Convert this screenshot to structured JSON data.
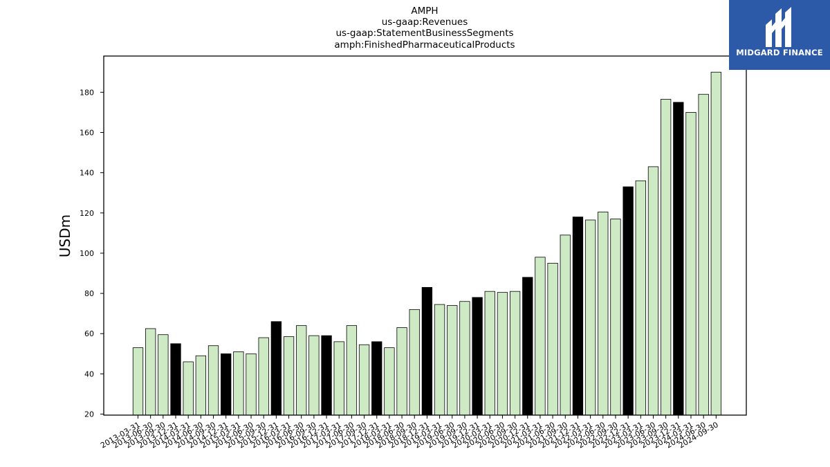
{
  "brand": {
    "name": "MIDGARD FINANCE",
    "bg_color": "#2d5aa8"
  },
  "chart_data": {
    "type": "bar",
    "title_lines": [
      "AMPH",
      "us-gaap:Revenues",
      "us-gaap:StatementBusinessSegments",
      "amph:FinishedPharmaceuticalProducts"
    ],
    "ylabel": "USDm",
    "xlabel": "",
    "ylim": [
      19.5,
      198
    ],
    "yticks": [
      20,
      40,
      60,
      80,
      100,
      120,
      140,
      160,
      180
    ],
    "grid": false,
    "colors": {
      "regular": "#cdeac5",
      "highlight": "#000000",
      "edge": "#000000"
    },
    "categories": [
      "2013-03-31",
      "2013-06-30",
      "2013-09-30",
      "2013-12-31",
      "2014-03-31",
      "2014-06-30",
      "2014-09-30",
      "2014-12-31",
      "2015-03-31",
      "2015-06-30",
      "2015-09-30",
      "2015-12-31",
      "2016-03-31",
      "2016-06-30",
      "2016-09-30",
      "2016-12-31",
      "2017-03-31",
      "2017-06-30",
      "2017-09-30",
      "2017-12-31",
      "2018-03-31",
      "2018-06-30",
      "2018-09-30",
      "2018-12-31",
      "2019-03-31",
      "2019-06-30",
      "2019-09-30",
      "2019-12-31",
      "2020-03-31",
      "2020-06-30",
      "2020-09-30",
      "2020-12-31",
      "2021-03-31",
      "2021-06-30",
      "2021-09-30",
      "2021-12-31",
      "2022-03-31",
      "2022-06-30",
      "2022-09-30",
      "2022-12-31",
      "2023-03-31",
      "2023-06-30",
      "2023-09-30",
      "2023-12-31",
      "2024-03-31",
      "2024-06-30",
      "2024-09-30"
    ],
    "values": [
      53,
      62.5,
      59.5,
      55,
      46,
      49,
      54,
      50,
      51,
      50,
      58,
      66,
      58.5,
      64,
      59,
      59,
      56,
      64,
      54.5,
      56,
      53,
      63,
      72,
      83,
      74.5,
      74,
      76,
      78,
      81,
      80.5,
      81,
      88,
      98,
      95,
      109,
      118,
      116.5,
      120.5,
      117,
      133,
      136,
      143,
      176.5,
      175,
      170,
      179,
      190
    ],
    "highlight": [
      false,
      false,
      false,
      true,
      false,
      false,
      false,
      true,
      false,
      false,
      false,
      true,
      false,
      false,
      false,
      true,
      false,
      false,
      false,
      true,
      false,
      false,
      false,
      true,
      false,
      false,
      false,
      true,
      false,
      false,
      false,
      true,
      false,
      false,
      false,
      true,
      false,
      false,
      false,
      true,
      false,
      false,
      false,
      true,
      false,
      false,
      false
    ]
  }
}
